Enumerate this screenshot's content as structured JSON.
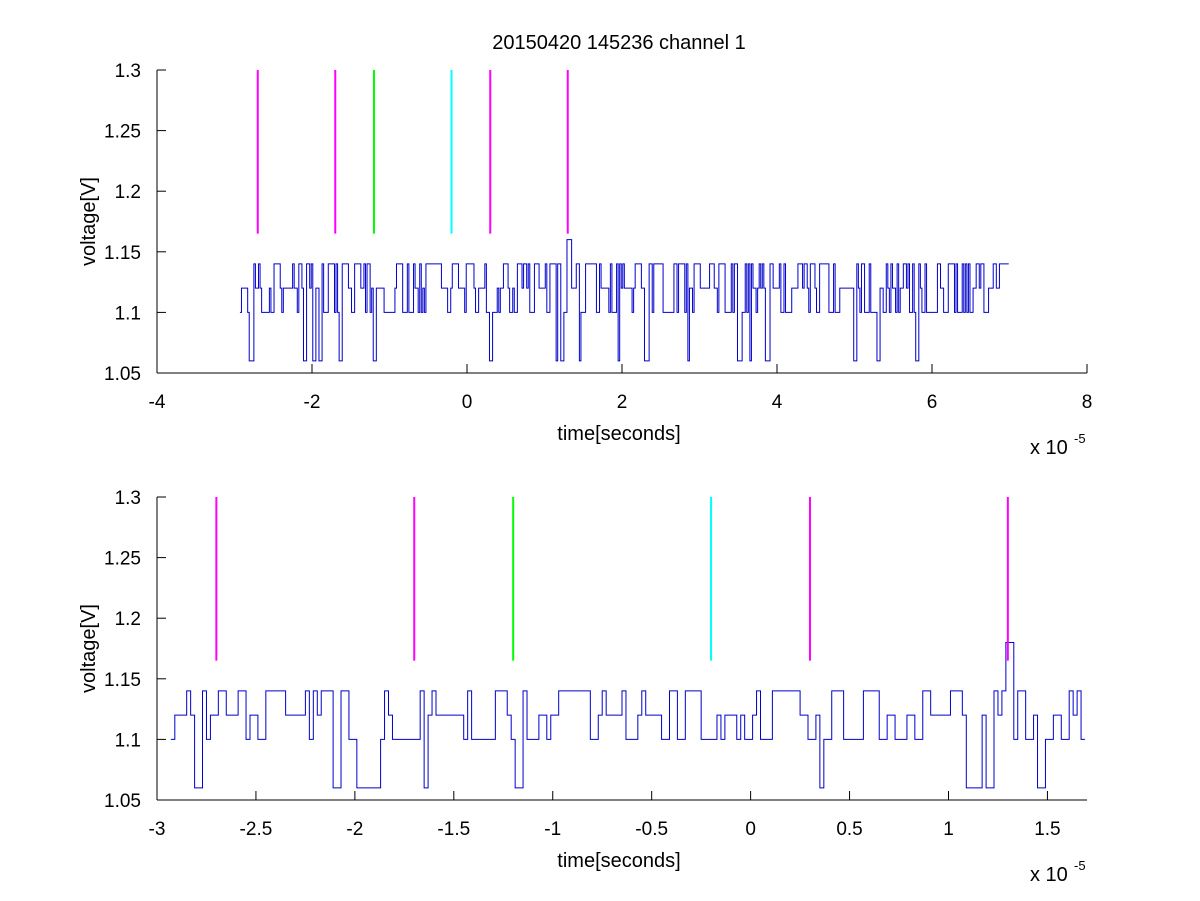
{
  "figure": {
    "background": "#ffffff",
    "title": "20150420 145236 channel 1"
  },
  "chart_data": [
    {
      "type": "line",
      "title": "20150420 145236 channel 1",
      "xlabel": "time[seconds]",
      "ylabel": "voltage[V]",
      "x_exponent_label": "x 10",
      "x_exponent_power": "-5",
      "x_scale": 1e-05,
      "xlim": [
        -4,
        8
      ],
      "ylim": [
        1.05,
        1.3
      ],
      "xticks": [
        -4,
        -2,
        0,
        2,
        4,
        6,
        8
      ],
      "xtick_labels": [
        "-4",
        "-2",
        "0",
        "2",
        "4",
        "6",
        "8"
      ],
      "yticks": [
        1.05,
        1.1,
        1.15,
        1.2,
        1.25,
        1.3
      ],
      "ytick_labels": [
        "1.05",
        "1.1",
        "1.15",
        "1.2",
        "1.25",
        "1.3"
      ],
      "grid": false,
      "signal": {
        "color": "#0000cc",
        "x_range": [
          -2.93,
          7.0
        ],
        "sample_step": 0.02,
        "levels": [
          1.06,
          1.1,
          1.12,
          1.14,
          1.16
        ],
        "dips": [
          -2.8,
          -2.1,
          -1.98,
          -1.9,
          -1.65,
          -1.2,
          0.3,
          1.15,
          1.22,
          1.3,
          1.45,
          1.95,
          2.3,
          2.85,
          3.5,
          3.65,
          3.85,
          5.0,
          5.3,
          5.8
        ],
        "spike": {
          "x": 1.3,
          "y": 1.16
        }
      },
      "markers": [
        {
          "x": -2.7,
          "y_range": [
            1.165,
            1.3
          ],
          "color": "#ff00ff"
        },
        {
          "x": -1.7,
          "y_range": [
            1.165,
            1.3
          ],
          "color": "#ff00ff"
        },
        {
          "x": -1.2,
          "y_range": [
            1.165,
            1.3
          ],
          "color": "#00ff00"
        },
        {
          "x": -0.2,
          "y_range": [
            1.165,
            1.3
          ],
          "color": "#00ffff"
        },
        {
          "x": 0.3,
          "y_range": [
            1.165,
            1.3
          ],
          "color": "#ff00ff"
        },
        {
          "x": 1.3,
          "y_range": [
            1.165,
            1.3
          ],
          "color": "#ff00ff"
        }
      ]
    },
    {
      "type": "line",
      "title": "",
      "xlabel": "time[seconds]",
      "ylabel": "voltage[V]",
      "x_exponent_label": "x 10",
      "x_exponent_power": "-5",
      "x_scale": 1e-05,
      "xlim": [
        -3.0,
        1.7
      ],
      "ylim": [
        1.05,
        1.3
      ],
      "xticks": [
        -3,
        -2.5,
        -2,
        -1.5,
        -1,
        -0.5,
        0,
        0.5,
        1,
        1.5
      ],
      "xtick_labels": [
        "-3",
        "-2.5",
        "-2",
        "-1.5",
        "-1",
        "-0.5",
        "0",
        "0.5",
        "1",
        "1.5"
      ],
      "yticks": [
        1.05,
        1.1,
        1.15,
        1.2,
        1.25,
        1.3
      ],
      "ytick_labels": [
        "1.05",
        "1.1",
        "1.15",
        "1.2",
        "1.25",
        "1.3"
      ],
      "grid": false,
      "signal": {
        "color": "#0000cc",
        "x_range": [
          -2.93,
          1.7
        ],
        "sample_step": 0.02,
        "levels": [
          1.06,
          1.1,
          1.12,
          1.14,
          1.16
        ],
        "dips": [
          -2.8,
          -2.1,
          -1.98,
          -1.9,
          -1.65,
          -1.18,
          0.35,
          1.1,
          1.2,
          1.3,
          1.46
        ],
        "spike": {
          "x": 1.3,
          "y": 1.18
        }
      },
      "markers": [
        {
          "x": -2.7,
          "y_range": [
            1.165,
            1.3
          ],
          "color": "#ff00ff"
        },
        {
          "x": -1.7,
          "y_range": [
            1.165,
            1.3
          ],
          "color": "#ff00ff"
        },
        {
          "x": -1.2,
          "y_range": [
            1.165,
            1.3
          ],
          "color": "#00ff00"
        },
        {
          "x": -0.2,
          "y_range": [
            1.165,
            1.3
          ],
          "color": "#00ffff"
        },
        {
          "x": 0.3,
          "y_range": [
            1.165,
            1.3
          ],
          "color": "#ff00ff"
        },
        {
          "x": 1.3,
          "y_range": [
            1.165,
            1.3
          ],
          "color": "#ff00ff"
        }
      ]
    }
  ]
}
